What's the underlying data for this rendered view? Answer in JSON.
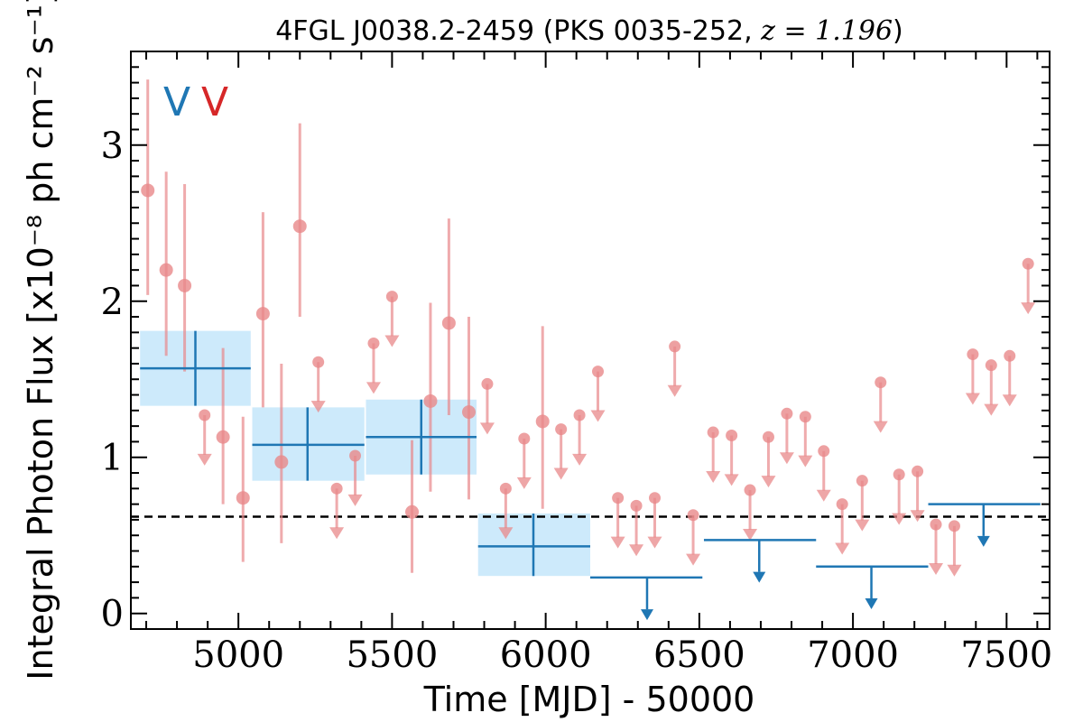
{
  "chart_data": {
    "type": "scatter",
    "title_prefix": "4FGL J0038.2-2459 (PKS 0035-252, ",
    "title_math": "z = 1.196",
    "title_suffix": ")",
    "xlabel": "Time [MJD] - 50000",
    "ylabel": "Integral Photon Flux [x10⁻⁸ ph cm⁻² s⁻¹]",
    "xlim": [
      4650,
      7640
    ],
    "ylim": [
      -0.1,
      3.6
    ],
    "xticks": [
      5000,
      5500,
      6000,
      6500,
      7000,
      7500
    ],
    "yticks": [
      0,
      1,
      2,
      3
    ],
    "mean_flux": 0.62,
    "marker_letters": [
      {
        "text": "V",
        "color": "#1f77b4"
      },
      {
        "text": "V",
        "color": "#d62728"
      }
    ],
    "colors": {
      "fine": "#e8888a",
      "coarse": "#1f77b4",
      "band": "#cdeafb",
      "mean_line": "#000000"
    },
    "fine_points": [
      {
        "x": 4705,
        "y": 2.71,
        "lo": 2.04,
        "hi": 3.42
      },
      {
        "x": 4765,
        "y": 2.2,
        "lo": 1.65,
        "hi": 2.83
      },
      {
        "x": 4825,
        "y": 2.1,
        "lo": 1.55,
        "hi": 2.75
      },
      {
        "x": 5080,
        "y": 1.92,
        "lo": 1.32,
        "hi": 2.57
      },
      {
        "x": 5200,
        "y": 2.48,
        "lo": 1.9,
        "hi": 3.14
      },
      {
        "x": 4950,
        "y": 1.13,
        "lo": 0.7,
        "hi": 1.7
      },
      {
        "x": 5015,
        "y": 0.74,
        "lo": 0.33,
        "hi": 1.26
      },
      {
        "x": 5140,
        "y": 0.97,
        "lo": 0.45,
        "hi": 1.6
      },
      {
        "x": 5565,
        "y": 0.65,
        "lo": 0.26,
        "hi": 1.11
      },
      {
        "x": 5625,
        "y": 1.36,
        "lo": 0.78,
        "hi": 1.99
      },
      {
        "x": 5685,
        "y": 1.86,
        "lo": 1.27,
        "hi": 2.53
      },
      {
        "x": 5750,
        "y": 1.29,
        "lo": 0.73,
        "hi": 1.9
      },
      {
        "x": 5990,
        "y": 1.23,
        "lo": 0.67,
        "hi": 1.84
      }
    ],
    "fine_upper_limits": [
      {
        "x": 4890,
        "y": 1.27
      },
      {
        "x": 5260,
        "y": 1.61
      },
      {
        "x": 5320,
        "y": 0.8
      },
      {
        "x": 5380,
        "y": 1.01
      },
      {
        "x": 5440,
        "y": 1.73
      },
      {
        "x": 5500,
        "y": 2.03
      },
      {
        "x": 5810,
        "y": 1.47
      },
      {
        "x": 5870,
        "y": 0.8
      },
      {
        "x": 5930,
        "y": 1.12
      },
      {
        "x": 6050,
        "y": 1.18
      },
      {
        "x": 6110,
        "y": 1.27
      },
      {
        "x": 6170,
        "y": 1.55
      },
      {
        "x": 6235,
        "y": 0.74
      },
      {
        "x": 6295,
        "y": 0.69
      },
      {
        "x": 6355,
        "y": 0.74
      },
      {
        "x": 6420,
        "y": 1.71
      },
      {
        "x": 6480,
        "y": 0.63
      },
      {
        "x": 6545,
        "y": 1.16
      },
      {
        "x": 6605,
        "y": 1.14
      },
      {
        "x": 6665,
        "y": 0.79
      },
      {
        "x": 6725,
        "y": 1.13
      },
      {
        "x": 6785,
        "y": 1.28
      },
      {
        "x": 6845,
        "y": 1.26
      },
      {
        "x": 6905,
        "y": 1.04
      },
      {
        "x": 6965,
        "y": 0.7
      },
      {
        "x": 7030,
        "y": 0.85
      },
      {
        "x": 7090,
        "y": 1.48
      },
      {
        "x": 7150,
        "y": 0.89
      },
      {
        "x": 7210,
        "y": 0.91
      },
      {
        "x": 7270,
        "y": 0.57
      },
      {
        "x": 7330,
        "y": 0.56
      },
      {
        "x": 7390,
        "y": 1.66
      },
      {
        "x": 7450,
        "y": 1.59
      },
      {
        "x": 7510,
        "y": 1.65
      },
      {
        "x": 7570,
        "y": 2.24
      }
    ],
    "coarse_points": [
      {
        "x": 4860,
        "x0": 4680,
        "x1": 5040,
        "y": 1.57,
        "lo": 1.33,
        "hi": 1.81
      },
      {
        "x": 5225,
        "x0": 5045,
        "x1": 5410,
        "y": 1.08,
        "lo": 0.85,
        "hi": 1.32
      },
      {
        "x": 5595,
        "x0": 5415,
        "x1": 5775,
        "y": 1.13,
        "lo": 0.89,
        "hi": 1.37
      },
      {
        "x": 5960,
        "x0": 5780,
        "x1": 6145,
        "y": 0.43,
        "lo": 0.24,
        "hi": 0.64
      }
    ],
    "coarse_upper_limits": [
      {
        "x": 6330,
        "x0": 6145,
        "x1": 6510,
        "y": 0.23
      },
      {
        "x": 6695,
        "x0": 6515,
        "x1": 6880,
        "y": 0.47
      },
      {
        "x": 7060,
        "x0": 6880,
        "x1": 7245,
        "y": 0.3
      },
      {
        "x": 7425,
        "x0": 7245,
        "x1": 7610,
        "y": 0.7
      }
    ]
  }
}
